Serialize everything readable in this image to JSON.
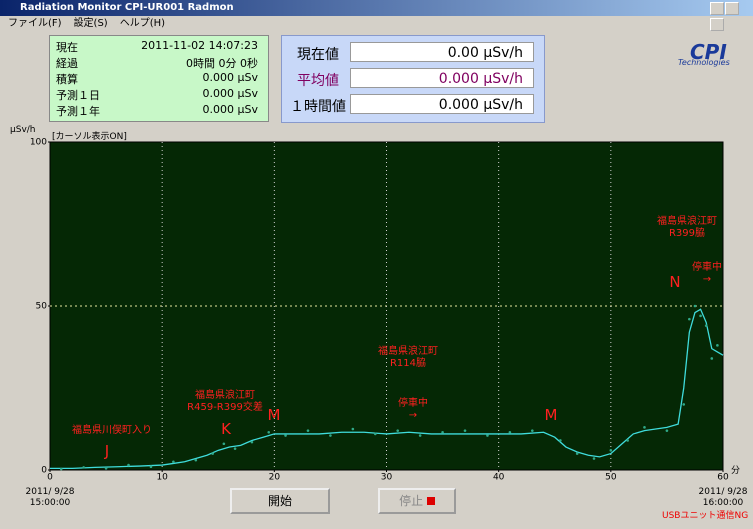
{
  "window": {
    "title": "Radiation Monitor CPI-UR001 Radmon",
    "menu": [
      "ファイル(F)",
      "設定(S)",
      "ヘルプ(H)"
    ]
  },
  "info": {
    "rows": [
      [
        "現在",
        "2011-11-02 14:07:23"
      ],
      [
        "経過",
        "0時間 0分 0秒"
      ],
      [
        "積算",
        "0.000 μSv"
      ],
      [
        "予測１日",
        "0.000 μSv"
      ],
      [
        "予測１年",
        "0.000 μSv"
      ]
    ]
  },
  "readings": {
    "rows": [
      [
        "現在値",
        "0.00 μSv/h"
      ],
      [
        "平均値",
        "0.000 μSv/h"
      ],
      [
        "１時間値",
        "0.000 μSv/h"
      ]
    ]
  },
  "logo": {
    "name": "CPI",
    "tagline": "Technologies"
  },
  "cursor_mode": "[カーソル表示ON]",
  "buttons": {
    "start": "開始",
    "stop": "停止"
  },
  "status": "USBユニット通信NG",
  "chart_data": {
    "type": "line",
    "y_label": "μSv/h",
    "x_label": "分",
    "x_start_label": "2011/ 9/28\n15:00:00",
    "x_end_label": "2011/ 9/28\n16:00:00",
    "xlim": [
      0,
      60
    ],
    "ylim": [
      0,
      100
    ],
    "xticks": [
      0,
      10,
      20,
      30,
      40,
      50,
      60
    ],
    "yticks": [
      0,
      50,
      100
    ],
    "grid": true,
    "series": [
      {
        "type": "line",
        "color": "#3fdcdc",
        "x": [
          0,
          2,
          4,
          6,
          8,
          10,
          11,
          12,
          13,
          14,
          15,
          16,
          17,
          18,
          19,
          20,
          22,
          24,
          26,
          28,
          30,
          32,
          34,
          36,
          38,
          40,
          42,
          44,
          45,
          46,
          47,
          48,
          49,
          50,
          51,
          52,
          53,
          54,
          55,
          56,
          56.5,
          57,
          57.5,
          58,
          58.5,
          59,
          59.5,
          60
        ],
        "values": [
          0.5,
          0.5,
          0.8,
          1,
          1.2,
          1.5,
          2,
          2.5,
          3.5,
          4.5,
          6,
          7,
          7.5,
          9,
          10,
          11,
          11,
          11,
          11.5,
          11.5,
          11,
          11.5,
          11,
          11,
          11,
          11,
          11,
          11.5,
          10,
          7,
          5.5,
          4.5,
          4,
          5,
          8,
          11,
          12,
          12.5,
          13,
          14,
          25,
          42,
          48,
          49,
          45,
          37,
          36,
          35
        ]
      },
      {
        "type": "scatter",
        "color": "#2fa888",
        "x": [
          1,
          3,
          5,
          7,
          9,
          11,
          13,
          14.5,
          15.5,
          16.5,
          18,
          19.5,
          21,
          23,
          25,
          27,
          29,
          31,
          33,
          35,
          37,
          39,
          41,
          43,
          45.5,
          47,
          48.5,
          50,
          51.5,
          53,
          55,
          56.5,
          57,
          57.5,
          58,
          58.5,
          59,
          59.5
        ],
        "values": [
          0.3,
          0.8,
          0.5,
          1.5,
          1,
          2.5,
          3,
          5,
          8,
          6.5,
          8.5,
          11.5,
          10.5,
          12,
          10.5,
          12.5,
          11,
          12,
          10.5,
          11.5,
          12,
          10.5,
          11.5,
          12,
          9,
          5,
          3.5,
          6,
          9,
          13,
          12,
          20,
          46,
          50,
          47,
          44,
          34,
          38
        ]
      }
    ],
    "annotations": [
      "福島県川俣町入り",
      "J",
      "福島県浪江町\nR459-R399交差",
      "K",
      "M",
      "福島県浪江町\nR114脇",
      "停車中\n→",
      "M",
      "N",
      "福島県浪江町\nR399脇",
      "停車中\n→"
    ]
  }
}
